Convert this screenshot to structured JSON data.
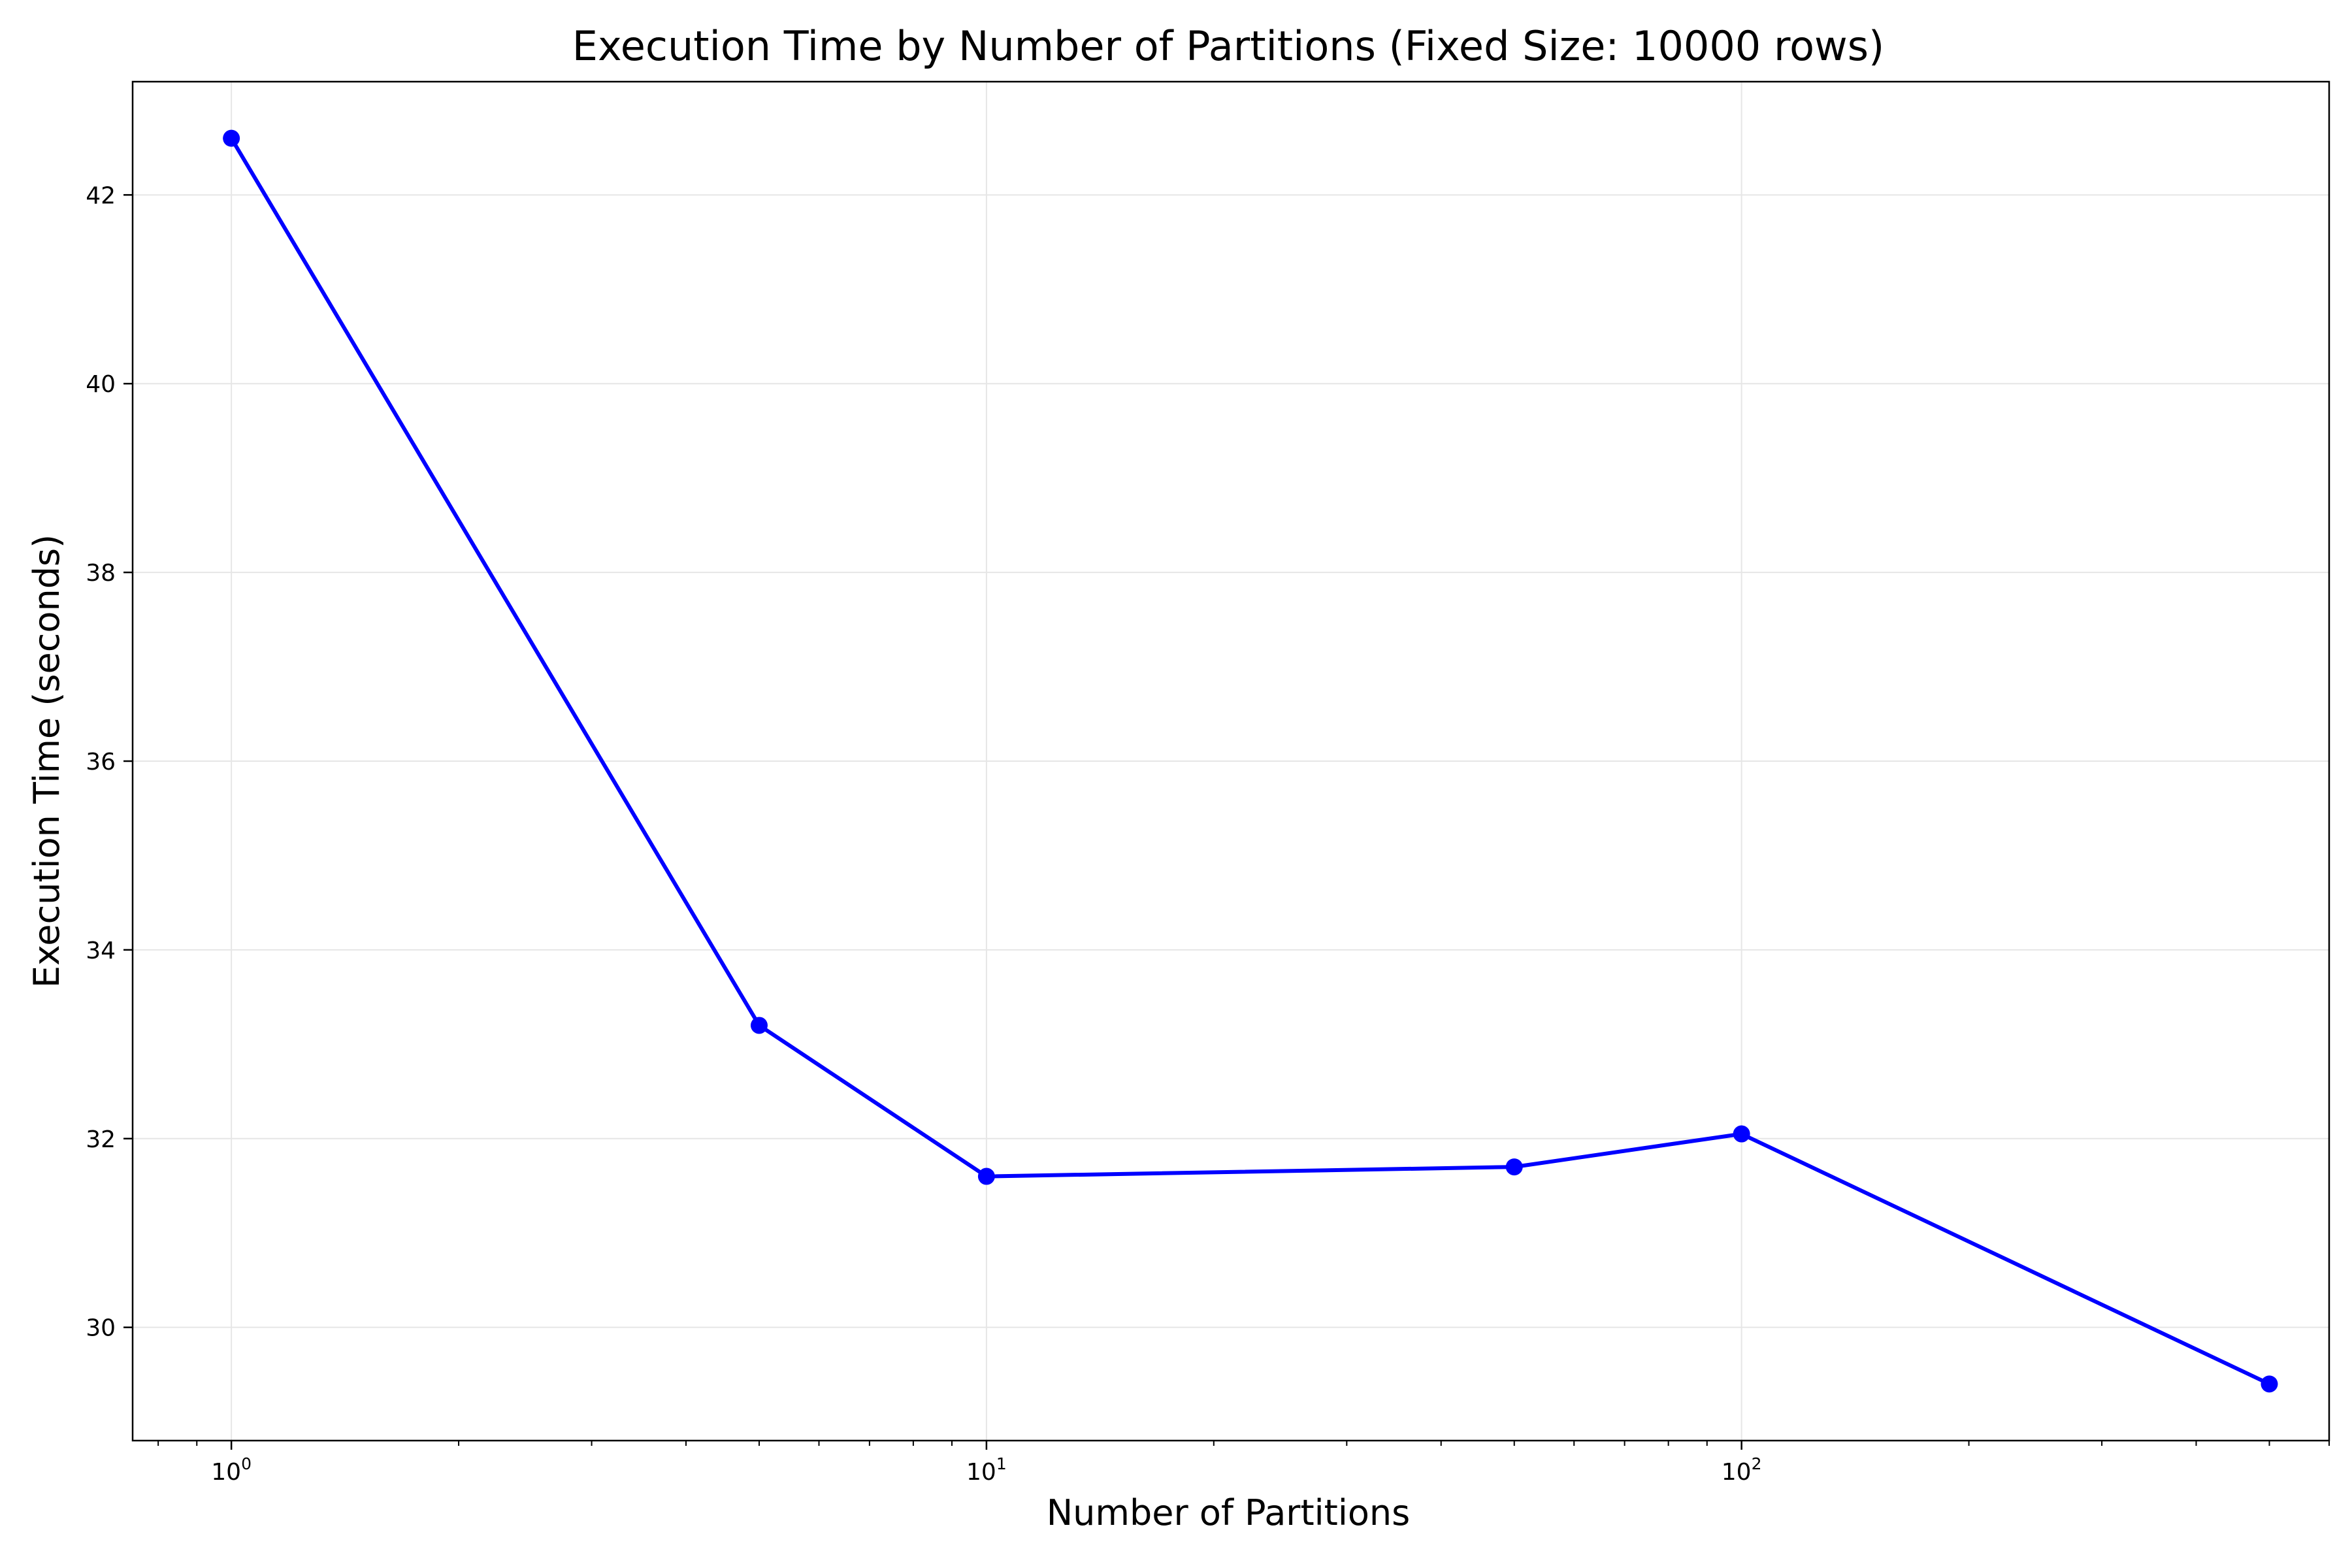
{
  "chart_data": {
    "type": "line",
    "title": "Execution Time by Number of Partitions (Fixed Size: 10000 rows)",
    "xlabel": "Number of Partitions",
    "ylabel": "Execution Time (seconds)",
    "x_scale": "log",
    "xlim": [
      0.74,
      600
    ],
    "ylim": [
      28.8,
      43.2
    ],
    "grid": true,
    "x_ticks": [
      {
        "value": 1,
        "base": "10",
        "exp": "0"
      },
      {
        "value": 10,
        "base": "10",
        "exp": "1"
      },
      {
        "value": 100,
        "base": "10",
        "exp": "2"
      }
    ],
    "y_ticks": [
      30,
      32,
      34,
      36,
      38,
      40,
      42
    ],
    "series": [
      {
        "color": "#0000ff",
        "x": [
          1,
          5,
          10,
          50,
          100,
          500
        ],
        "y": [
          42.6,
          33.2,
          31.6,
          31.7,
          32.05,
          29.4
        ]
      }
    ]
  }
}
